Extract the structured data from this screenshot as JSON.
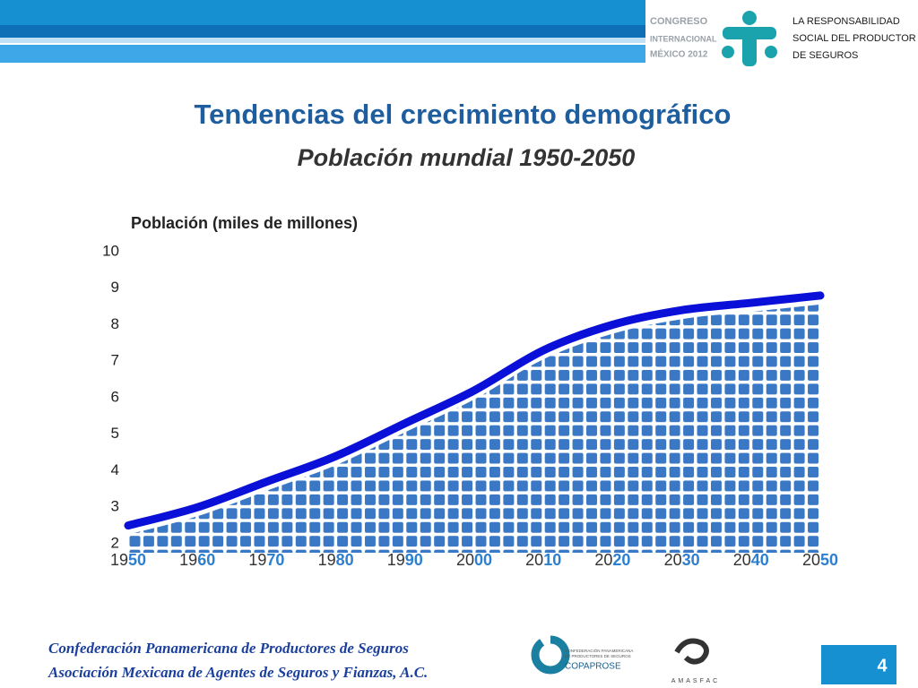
{
  "header": {
    "congress": [
      "CONGRESO",
      "INTERNACIONAL",
      "MÉXICO 2012"
    ],
    "motto": [
      "LA RESPONSABILIDAD",
      "SOCIAL DEL PRODUCTOR",
      "DE SEGUROS"
    ]
  },
  "chart_data": {
    "type": "line",
    "title": "Tendencias del crecimiento demográfico",
    "subtitle": "Población mundial 1950-2050",
    "y_label": "Población (miles de millones)",
    "x": [
      1950,
      1960,
      1970,
      1980,
      1990,
      2000,
      2010,
      2020,
      2030,
      2040,
      2050
    ],
    "series": [
      {
        "color": "#0a10d8",
        "values": [
          2.5,
          3.0,
          3.7,
          4.4,
          5.3,
          6.2,
          7.3,
          8.0,
          8.4,
          8.6,
          8.8
        ]
      }
    ],
    "xlim": [
      1950,
      2050
    ],
    "xticks": [
      1950,
      1960,
      1970,
      1980,
      1990,
      2000,
      2010,
      2020,
      2030,
      2040,
      2050
    ],
    "ylim": [
      2,
      10
    ],
    "yticks": [
      2,
      3,
      4,
      5,
      6,
      7,
      8,
      9,
      10
    ]
  },
  "footer": {
    "lines": [
      "Confederación Panamericana de Productores de Seguros",
      "Asociación Mexicana de Agentes de Seguros y Fianzas, A.C."
    ],
    "logo1": [
      "CONFEDERACIÓN PANAMERICANA",
      "DE PRODUCTORES DE SEGUROS",
      "COPAPROSE"
    ],
    "logo2": "AMASFAC",
    "page": 4
  }
}
